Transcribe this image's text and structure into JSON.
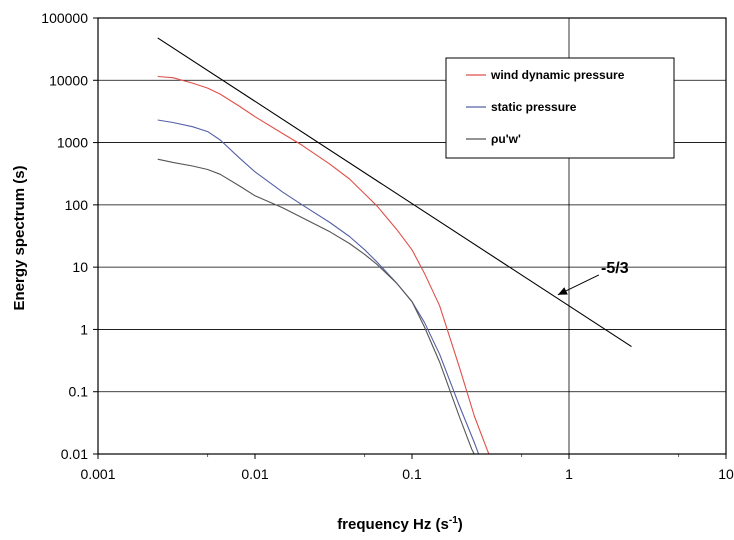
{
  "chart_data": {
    "type": "line",
    "xscale": "log",
    "yscale": "log",
    "xlim": [
      0.001,
      10
    ],
    "ylim": [
      0.01,
      100000
    ],
    "xticks": [
      "0.001",
      "0.01",
      "0.1",
      "1",
      "10"
    ],
    "yticks": [
      "0.01",
      "0.1",
      "1",
      "10",
      "100",
      "1000",
      "10000",
      "100000"
    ],
    "xlabel": "frequency Hz (s",
    "xlabel_sup": "-1",
    "xlabel_close": ")",
    "ylabel": "Energy spectrum (s)",
    "grid": "horizontal major gridlines, vertical gridline at 1",
    "legend_position": "top-right",
    "series": [
      {
        "name": "wind dynamic pressure",
        "color": "#e0504a",
        "x": [
          0.0024,
          0.003,
          0.004,
          0.005,
          0.006,
          0.008,
          0.01,
          0.015,
          0.02,
          0.03,
          0.04,
          0.05,
          0.06,
          0.08,
          0.1,
          0.12,
          0.15,
          0.2,
          0.25,
          0.3,
          0.32
        ],
        "y": [
          11500,
          11000,
          9000,
          7500,
          6000,
          3800,
          2600,
          1400,
          900,
          450,
          260,
          150,
          95,
          40,
          19,
          8,
          2.4,
          0.25,
          0.04,
          0.012,
          0.008
        ]
      },
      {
        "name": "static pressure",
        "color": "#5560a6",
        "x": [
          0.0024,
          0.003,
          0.004,
          0.005,
          0.006,
          0.008,
          0.01,
          0.015,
          0.02,
          0.03,
          0.04,
          0.05,
          0.06,
          0.08,
          0.1,
          0.12,
          0.15,
          0.2,
          0.25,
          0.27,
          0.29
        ],
        "y": [
          2300,
          2100,
          1800,
          1500,
          1100,
          560,
          340,
          160,
          100,
          52,
          31,
          19,
          12,
          5.5,
          2.8,
          1.3,
          0.4,
          0.06,
          0.015,
          0.009,
          0.006
        ]
      },
      {
        "name": "ρu'w'",
        "color": "#555555",
        "x": [
          0.0024,
          0.003,
          0.004,
          0.005,
          0.006,
          0.008,
          0.01,
          0.015,
          0.02,
          0.03,
          0.04,
          0.05,
          0.06,
          0.08,
          0.1,
          0.12,
          0.15,
          0.2,
          0.24,
          0.26,
          0.28
        ],
        "y": [
          540,
          480,
          420,
          370,
          310,
          200,
          140,
          90,
          62,
          37,
          24,
          16,
          11,
          5.5,
          2.8,
          1.1,
          0.3,
          0.04,
          0.012,
          0.008,
          0.006
        ]
      },
      {
        "name": "",
        "color": "#000000",
        "x": [
          0.0024,
          2.5
        ],
        "y": [
          48000,
          0.53
        ]
      }
    ],
    "annotations": [
      {
        "text": "-5/3",
        "x": 1.6,
        "y": 10,
        "arrow_from": [
          1.55,
          7.5
        ],
        "arrow_to": [
          0.85,
          3.6
        ]
      }
    ]
  }
}
